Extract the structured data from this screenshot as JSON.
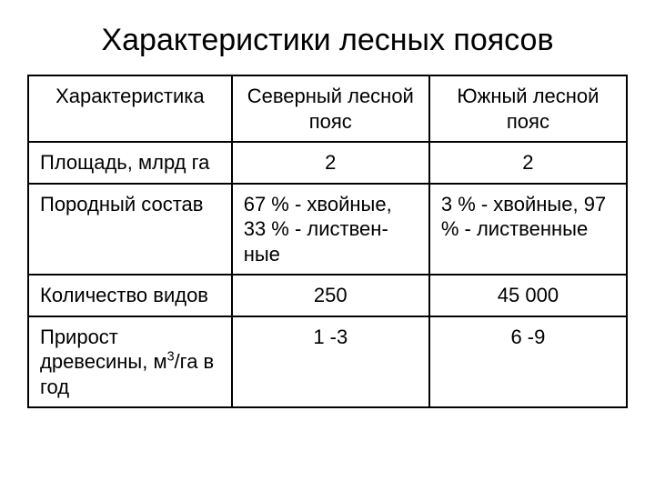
{
  "title": "Характеристики лесных поясов",
  "table": {
    "header": {
      "c1": "Характеристика",
      "c2": "Северный лесной пояс",
      "c3": "Южный лесной пояс"
    },
    "rows": [
      {
        "c1": "Площадь, млрд га",
        "c2": "2",
        "c3": "2",
        "c2_align": "center",
        "c3_align": "center"
      },
      {
        "c1": "Породный состав",
        "c2": "67 % - хвойные, 33 % - листвен­ные",
        "c3": "3 % - хвойные, 97 % - лист­венные",
        "c2_align": "left",
        "c3_align": "left"
      },
      {
        "c1": "Количество видов",
        "c2": "250",
        "c3": "45 000",
        "c2_align": "center",
        "c3_align": "center"
      },
      {
        "c1_html": "Прирост древесины, м<sup>3</sup>/га в год",
        "c2": "1 -3",
        "c3": "6 -9",
        "c2_align": "center",
        "c3_align": "center"
      }
    ]
  },
  "style": {
    "background": "#ffffff",
    "text_color": "#000000",
    "border_color": "#000000",
    "title_fontsize": 34,
    "cell_fontsize": 22
  }
}
